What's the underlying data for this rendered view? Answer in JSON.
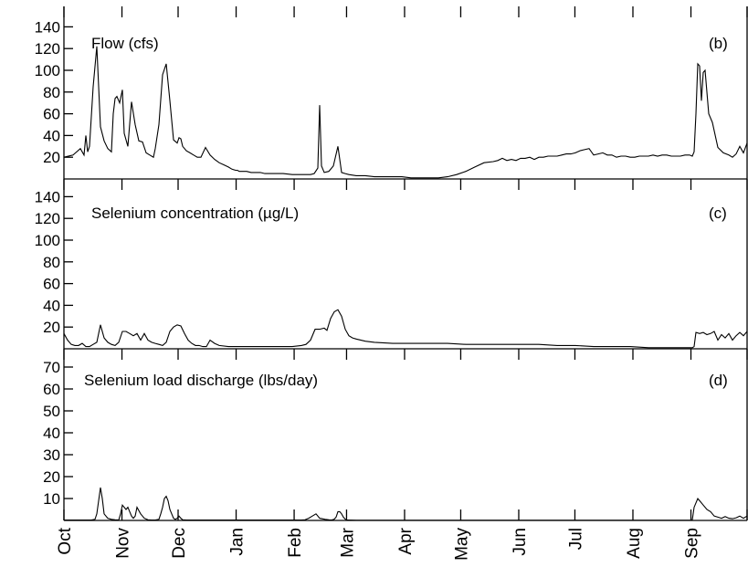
{
  "chart_data": [
    {
      "type": "line",
      "panel_letter": "(b)",
      "title": "Flow (cfs)",
      "xlabel": "",
      "ylabel": "",
      "ylim": [
        0,
        150
      ],
      "yticks": [
        20,
        40,
        60,
        80,
        100,
        120,
        140
      ],
      "grid": false,
      "series": [
        {
          "x": [
            0,
            10,
            18,
            22,
            24,
            26,
            28,
            32,
            36,
            38,
            40,
            44,
            48,
            52,
            54,
            56,
            58,
            61,
            64,
            66,
            70,
            74,
            78,
            82,
            86,
            90,
            94,
            98,
            100,
            104,
            108,
            112,
            116,
            120,
            124,
            126,
            128,
            130,
            134,
            138,
            142,
            146,
            150,
            155,
            160,
            165,
            170,
            175,
            180,
            184,
            188,
            190,
            192,
            196,
            200,
            205,
            210,
            215,
            220,
            225,
            230,
            235,
            240,
            250,
            260,
            270,
            274,
            278,
            280,
            282,
            285,
            290,
            295,
            300,
            302,
            304,
            308,
            312,
            320,
            330,
            340,
            350,
            360,
            370,
            380,
            390,
            400,
            410,
            420,
            430,
            440,
            450,
            460,
            470,
            475,
            480,
            485,
            490,
            495,
            500,
            505,
            510,
            515,
            520,
            525,
            530,
            535,
            540,
            545,
            550,
            555,
            560,
            565,
            570,
            575,
            580,
            585,
            590,
            595,
            600,
            605,
            610,
            615,
            620,
            625,
            630,
            635,
            640,
            645,
            650,
            655,
            660,
            665,
            670,
            675,
            680,
            685,
            688,
            690,
            692,
            694,
            696,
            698,
            700,
            702,
            704,
            706,
            710,
            716,
            722,
            728,
            732,
            736,
            740,
            744,
            748
          ],
          "y": [
            20,
            22,
            28,
            22,
            40,
            25,
            30,
            85,
            122,
            85,
            48,
            35,
            28,
            25,
            60,
            74,
            76,
            70,
            82,
            42,
            30,
            71,
            50,
            35,
            34,
            24,
            22,
            20,
            28,
            50,
            96,
            106,
            72,
            36,
            33,
            38,
            37,
            30,
            26,
            24,
            22,
            20,
            20,
            29,
            22,
            18,
            15,
            13,
            11,
            9,
            8,
            8,
            7,
            7,
            7,
            6,
            6,
            6,
            5,
            5,
            5,
            5,
            5,
            4,
            4,
            4,
            5,
            10,
            68,
            12,
            6,
            7,
            12,
            30,
            18,
            6,
            5,
            4,
            3,
            3,
            2,
            2,
            2,
            2,
            1,
            1,
            1,
            1,
            2,
            4,
            7,
            11,
            15,
            16,
            17,
            19,
            17,
            18,
            17,
            19,
            19,
            20,
            18,
            20,
            20,
            21,
            21,
            21,
            22,
            23,
            23,
            24,
            26,
            27,
            28,
            22,
            23,
            24,
            22,
            22,
            20,
            21,
            21,
            20,
            20,
            21,
            21,
            21,
            22,
            21,
            22,
            22,
            21,
            21,
            21,
            22,
            22,
            21,
            25,
            60,
            106,
            104,
            72,
            98,
            100,
            80,
            60,
            52,
            29,
            24,
            22,
            20,
            23,
            30,
            24,
            33
          ]
        }
      ]
    },
    {
      "type": "line",
      "panel_letter": "(c)",
      "title": "Selenium concentration (µg/L)",
      "xlabel": "",
      "ylabel": "",
      "ylim": [
        0,
        150
      ],
      "yticks": [
        20,
        40,
        60,
        80,
        100,
        120,
        140
      ],
      "grid": false,
      "series": [
        {
          "x": [
            0,
            4,
            8,
            12,
            16,
            20,
            24,
            28,
            32,
            36,
            40,
            44,
            48,
            52,
            56,
            60,
            64,
            68,
            72,
            76,
            80,
            84,
            88,
            92,
            96,
            100,
            104,
            108,
            112,
            116,
            120,
            124,
            128,
            132,
            136,
            140,
            144,
            148,
            152,
            156,
            160,
            165,
            170,
            180,
            190,
            200,
            210,
            220,
            230,
            240,
            250,
            260,
            265,
            270,
            275,
            280,
            285,
            288,
            292,
            296,
            300,
            304,
            308,
            312,
            316,
            320,
            330,
            340,
            360,
            380,
            400,
            420,
            440,
            460,
            480,
            500,
            520,
            540,
            560,
            580,
            600,
            620,
            640,
            660,
            670,
            680,
            686,
            688,
            690,
            692,
            696,
            700,
            704,
            708,
            712,
            716,
            720,
            724,
            728,
            732,
            736,
            740,
            744,
            748
          ],
          "y": [
            14,
            8,
            4,
            3,
            3,
            5,
            2,
            2,
            4,
            6,
            22,
            10,
            6,
            4,
            3,
            6,
            16,
            16,
            14,
            12,
            14,
            8,
            14,
            8,
            6,
            5,
            4,
            3,
            6,
            16,
            20,
            22,
            21,
            14,
            8,
            5,
            3,
            3,
            2,
            2,
            8,
            5,
            3,
            2,
            2,
            2,
            2,
            2,
            2,
            2,
            2,
            3,
            4,
            8,
            18,
            18,
            19,
            17,
            28,
            34,
            36,
            30,
            18,
            12,
            10,
            9,
            7,
            6,
            5,
            5,
            5,
            5,
            4,
            4,
            4,
            4,
            4,
            3,
            3,
            2,
            2,
            2,
            1,
            1,
            1,
            1,
            1,
            1,
            2,
            15,
            14,
            15,
            13,
            14,
            16,
            8,
            13,
            10,
            14,
            8,
            12,
            15,
            12,
            16
          ]
        }
      ]
    },
    {
      "type": "line",
      "panel_letter": "(d)",
      "title": "Selenium load discharge (lbs/day)",
      "xlabel": "",
      "ylabel": "",
      "ylim": [
        0,
        75
      ],
      "yticks": [
        10,
        20,
        30,
        40,
        50,
        60,
        70
      ],
      "grid": false,
      "series": [
        {
          "x": [
            0,
            30,
            34,
            36,
            38,
            40,
            42,
            44,
            48,
            52,
            56,
            60,
            62,
            64,
            66,
            68,
            70,
            72,
            74,
            76,
            78,
            80,
            84,
            88,
            92,
            96,
            100,
            104,
            106,
            108,
            110,
            112,
            114,
            116,
            118,
            120,
            122,
            124,
            126,
            128,
            130,
            134,
            140,
            150,
            160,
            170,
            180,
            190,
            200,
            210,
            220,
            230,
            240,
            250,
            260,
            264,
            268,
            272,
            276,
            280,
            286,
            290,
            292,
            294,
            296,
            298,
            300,
            302,
            304,
            306,
            308,
            310,
            320,
            340,
            360,
            380,
            400,
            420,
            440,
            460,
            480,
            500,
            520,
            540,
            560,
            580,
            600,
            620,
            640,
            660,
            670,
            680,
            686,
            688,
            690,
            692,
            694,
            696,
            700,
            704,
            708,
            712,
            716,
            720,
            724,
            728,
            732,
            736,
            740,
            744,
            748
          ],
          "y": [
            0.2,
            0.2,
            0.5,
            3,
            9,
            15,
            10,
            3,
            1,
            0.5,
            0.3,
            0.2,
            3,
            7,
            6,
            5,
            6,
            4,
            2,
            1,
            2,
            6,
            3,
            1,
            0.3,
            0.2,
            0.2,
            0.5,
            3,
            6,
            10,
            11,
            9,
            5,
            3,
            1,
            0.5,
            1,
            2,
            1,
            0.3,
            0.2,
            0.2,
            0.2,
            0.2,
            0.2,
            0.2,
            0.2,
            0.2,
            0.2,
            0.2,
            0.2,
            0.2,
            0.2,
            0.2,
            0.3,
            1,
            2,
            3,
            1,
            0.5,
            0.3,
            0.2,
            0.3,
            0.6,
            1.5,
            4,
            4,
            3,
            1.5,
            0.6,
            0.2,
            0.1,
            0.1,
            0.1,
            0.1,
            0.1,
            0.1,
            0.1,
            0.1,
            0.1,
            0.1,
            0.1,
            0.1,
            0.1,
            0.1,
            0.1,
            0.1,
            0.1,
            0.1,
            0.1,
            0.1,
            0.1,
            0.2,
            6,
            8,
            10,
            9,
            7,
            5,
            4,
            2,
            1.5,
            1,
            1.8,
            1,
            0.8,
            1.2,
            2,
            1,
            2
          ]
        }
      ]
    }
  ],
  "x_axis": {
    "month_labels": [
      "Oct",
      "Nov",
      "Dec",
      "Jan",
      "Feb",
      "Mar",
      "Apr",
      "May",
      "Jun",
      "Jul",
      "Aug",
      "Sep"
    ]
  }
}
